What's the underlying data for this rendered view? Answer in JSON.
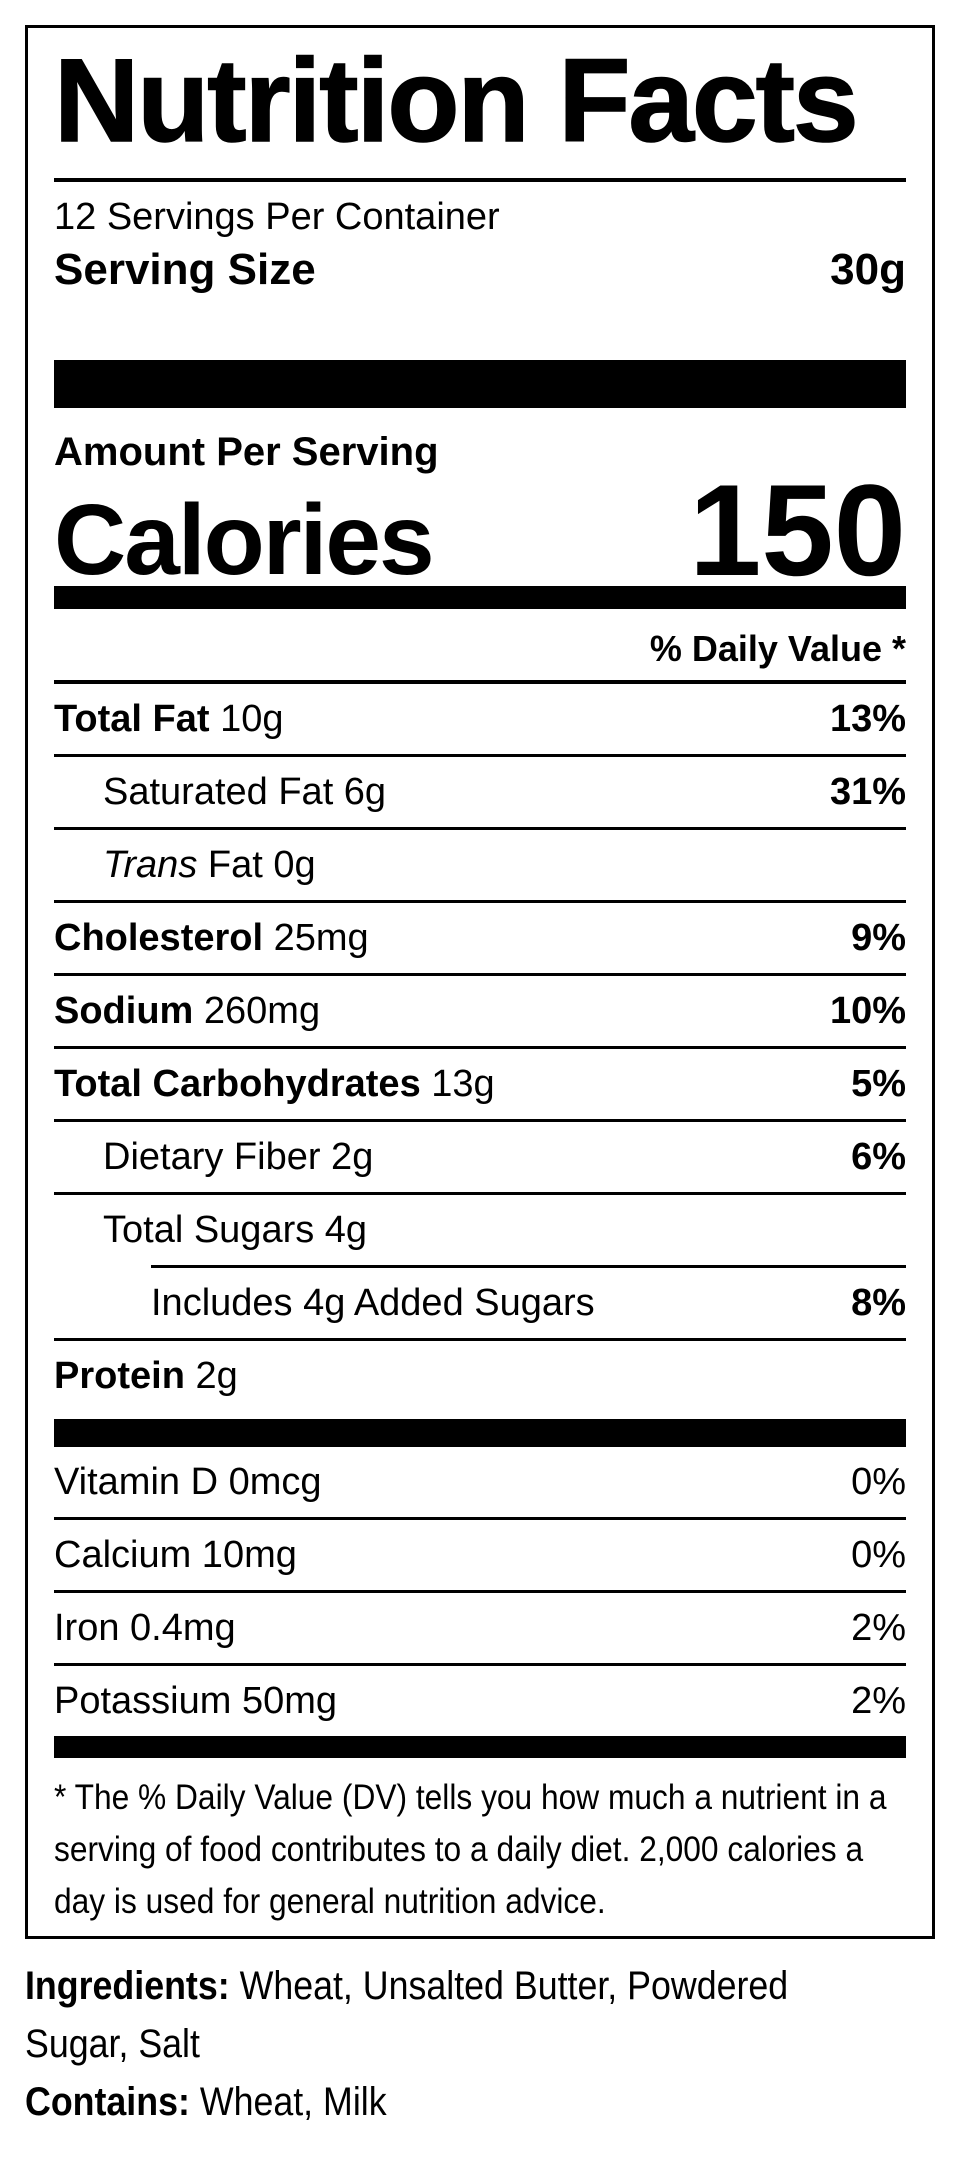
{
  "page": {
    "background": "#ffffff",
    "text_color": "#000000"
  },
  "label": {
    "title": "Nutrition Facts",
    "servings_per_container": "12 Servings Per Container",
    "serving_size": {
      "label": "Serving Size",
      "value": "30g"
    },
    "amount_per_serving": "Amount Per Serving",
    "calories": {
      "label": "Calories",
      "value": "150"
    },
    "daily_value_header": "% Daily Value *",
    "nutrient_rows": [
      {
        "name": "Total Fat",
        "amount": " 10g",
        "daily_value": "13%"
      },
      {
        "name": "Saturated Fat 6g",
        "daily_value": "31%"
      },
      {
        "name_italic": "Trans",
        "amount": " Fat 0g",
        "daily_value": ""
      },
      {
        "name": "Cholesterol",
        "amount": " 25mg",
        "daily_value": "9%"
      },
      {
        "name": "Sodium",
        "amount": " 260mg",
        "daily_value": "10%"
      },
      {
        "name": "Total Carbohydrates",
        "amount": " 13g",
        "daily_value": "5%"
      },
      {
        "name": "Dietary Fiber 2g",
        "daily_value": "6%"
      },
      {
        "name": "Total Sugars 4g",
        "daily_value": ""
      },
      {
        "name": "Includes 4g Added Sugars",
        "daily_value": "8%"
      },
      {
        "name": "Protein",
        "amount": " 2g",
        "daily_value": ""
      }
    ],
    "vitamin_rows": [
      {
        "name": "Vitamin D 0mcg",
        "daily_value": "0%"
      },
      {
        "name": "Calcium 10mg",
        "daily_value": "0%"
      },
      {
        "name": "Iron 0.4mg",
        "daily_value": "2%"
      },
      {
        "name": "Potassium 50mg",
        "daily_value": "2%"
      }
    ],
    "footnote": "* The % Daily Value (DV) tells you how much a nutrient in a serving of food contributes to a daily diet. 2,000 calories a day is used for general nutrition advice."
  },
  "ingredients": {
    "label": "Ingredients:",
    "value": " Wheat, Unsalted Butter, Powdered Sugar, Salt"
  },
  "contains": {
    "label": "Contains:",
    "value": " Wheat, Milk"
  }
}
